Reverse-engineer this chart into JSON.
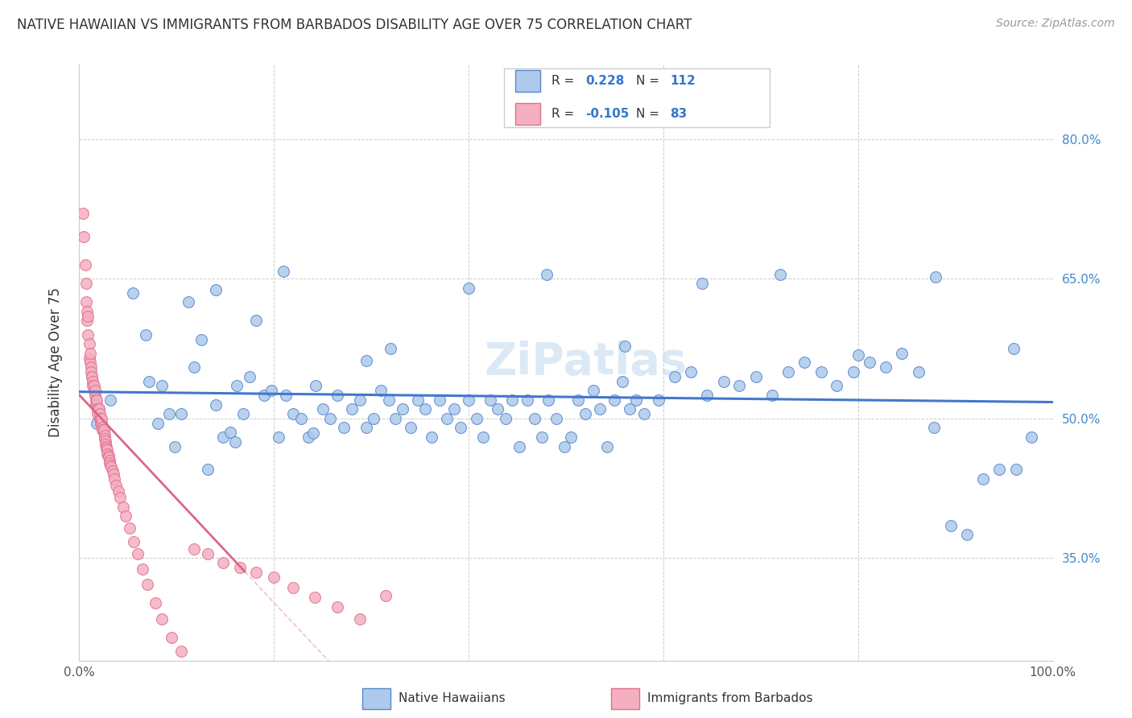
{
  "title": "NATIVE HAWAIIAN VS IMMIGRANTS FROM BARBADOS DISABILITY AGE OVER 75 CORRELATION CHART",
  "source": "Source: ZipAtlas.com",
  "ylabel": "Disability Age Over 75",
  "ytick_labels": [
    "80.0%",
    "65.0%",
    "50.0%",
    "35.0%"
  ],
  "ytick_vals": [
    0.8,
    0.65,
    0.5,
    0.35
  ],
  "xlim": [
    0.0,
    1.0
  ],
  "ylim": [
    0.24,
    0.88
  ],
  "color_blue": "#aec9ec",
  "color_pink": "#f4afc0",
  "edge_blue": "#5588cc",
  "edge_pink": "#e07090",
  "trend_blue": "#4477cc",
  "trend_pink_solid": "#dd6688",
  "trend_pink_dash": "#f4afc0",
  "watermark": "ZiPatlas",
  "blue_x": [
    0.018,
    0.032,
    0.055,
    0.068,
    0.072,
    0.081,
    0.085,
    0.092,
    0.098,
    0.105,
    0.112,
    0.118,
    0.125,
    0.132,
    0.14,
    0.148,
    0.155,
    0.162,
    0.168,
    0.175,
    0.182,
    0.19,
    0.197,
    0.205,
    0.212,
    0.22,
    0.228,
    0.235,
    0.243,
    0.25,
    0.258,
    0.265,
    0.272,
    0.28,
    0.288,
    0.295,
    0.302,
    0.31,
    0.318,
    0.325,
    0.332,
    0.34,
    0.348,
    0.355,
    0.362,
    0.37,
    0.378,
    0.385,
    0.392,
    0.4,
    0.408,
    0.415,
    0.422,
    0.43,
    0.438,
    0.445,
    0.452,
    0.46,
    0.468,
    0.475,
    0.482,
    0.49,
    0.498,
    0.505,
    0.512,
    0.52,
    0.528,
    0.535,
    0.542,
    0.55,
    0.558,
    0.565,
    0.572,
    0.58,
    0.595,
    0.612,
    0.628,
    0.645,
    0.662,
    0.678,
    0.695,
    0.712,
    0.728,
    0.745,
    0.762,
    0.778,
    0.795,
    0.812,
    0.828,
    0.845,
    0.862,
    0.878,
    0.895,
    0.912,
    0.928,
    0.945,
    0.962,
    0.978,
    0.16,
    0.24,
    0.32,
    0.4,
    0.48,
    0.56,
    0.64,
    0.72,
    0.8,
    0.88,
    0.96,
    0.14,
    0.21,
    0.295
  ],
  "blue_y": [
    0.495,
    0.52,
    0.635,
    0.59,
    0.54,
    0.495,
    0.535,
    0.505,
    0.47,
    0.505,
    0.625,
    0.555,
    0.585,
    0.445,
    0.515,
    0.48,
    0.485,
    0.535,
    0.505,
    0.545,
    0.605,
    0.525,
    0.53,
    0.48,
    0.525,
    0.505,
    0.5,
    0.48,
    0.535,
    0.51,
    0.5,
    0.525,
    0.49,
    0.51,
    0.52,
    0.49,
    0.5,
    0.53,
    0.52,
    0.5,
    0.51,
    0.49,
    0.52,
    0.51,
    0.48,
    0.52,
    0.5,
    0.51,
    0.49,
    0.52,
    0.5,
    0.48,
    0.52,
    0.51,
    0.5,
    0.52,
    0.47,
    0.52,
    0.5,
    0.48,
    0.52,
    0.5,
    0.47,
    0.48,
    0.52,
    0.505,
    0.53,
    0.51,
    0.47,
    0.52,
    0.54,
    0.51,
    0.52,
    0.505,
    0.52,
    0.545,
    0.55,
    0.525,
    0.54,
    0.535,
    0.545,
    0.525,
    0.55,
    0.56,
    0.55,
    0.535,
    0.55,
    0.56,
    0.555,
    0.57,
    0.55,
    0.49,
    0.385,
    0.375,
    0.435,
    0.445,
    0.445,
    0.48,
    0.475,
    0.484,
    0.575,
    0.64,
    0.655,
    0.578,
    0.645,
    0.655,
    0.568,
    0.652,
    0.575,
    0.638,
    0.658,
    0.562
  ],
  "pink_x": [
    0.004,
    0.005,
    0.006,
    0.007,
    0.007,
    0.008,
    0.008,
    0.009,
    0.009,
    0.01,
    0.01,
    0.011,
    0.011,
    0.012,
    0.012,
    0.013,
    0.013,
    0.014,
    0.014,
    0.015,
    0.015,
    0.016,
    0.016,
    0.017,
    0.017,
    0.018,
    0.018,
    0.019,
    0.019,
    0.02,
    0.02,
    0.021,
    0.021,
    0.022,
    0.022,
    0.023,
    0.023,
    0.024,
    0.024,
    0.025,
    0.025,
    0.026,
    0.026,
    0.027,
    0.027,
    0.028,
    0.028,
    0.029,
    0.029,
    0.03,
    0.03,
    0.031,
    0.031,
    0.032,
    0.033,
    0.034,
    0.035,
    0.036,
    0.038,
    0.04,
    0.042,
    0.045,
    0.048,
    0.052,
    0.056,
    0.06,
    0.065,
    0.07,
    0.078,
    0.085,
    0.095,
    0.105,
    0.118,
    0.132,
    0.148,
    0.165,
    0.182,
    0.2,
    0.22,
    0.242,
    0.265,
    0.288,
    0.315
  ],
  "pink_y": [
    0.72,
    0.695,
    0.665,
    0.645,
    0.625,
    0.605,
    0.615,
    0.59,
    0.61,
    0.58,
    0.565,
    0.56,
    0.57,
    0.555,
    0.55,
    0.545,
    0.545,
    0.54,
    0.535,
    0.53,
    0.535,
    0.525,
    0.53,
    0.52,
    0.515,
    0.515,
    0.52,
    0.51,
    0.505,
    0.51,
    0.51,
    0.5,
    0.505,
    0.5,
    0.495,
    0.495,
    0.5,
    0.49,
    0.488,
    0.485,
    0.488,
    0.482,
    0.478,
    0.476,
    0.472,
    0.47,
    0.468,
    0.466,
    0.462,
    0.46,
    0.458,
    0.455,
    0.452,
    0.45,
    0.448,
    0.444,
    0.44,
    0.435,
    0.428,
    0.422,
    0.415,
    0.405,
    0.395,
    0.382,
    0.368,
    0.355,
    0.338,
    0.322,
    0.302,
    0.285,
    0.265,
    0.25,
    0.36,
    0.355,
    0.345,
    0.34,
    0.335,
    0.33,
    0.318,
    0.308,
    0.298,
    0.285,
    0.31
  ]
}
